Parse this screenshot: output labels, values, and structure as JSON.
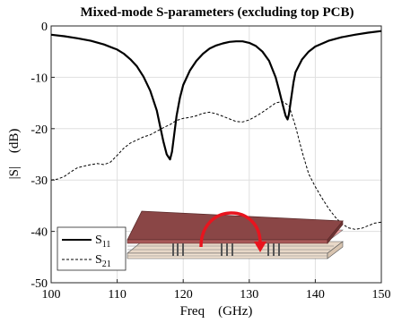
{
  "chart_data": {
    "type": "line",
    "title": "Mixed-mode S-parameters (excluding top PCB)",
    "xlabel": "Freq    (GHz)",
    "ylabel": "|S|    (dB)",
    "xlim": [
      100,
      150
    ],
    "ylim": [
      -50,
      0
    ],
    "xticks": [
      "100",
      "110",
      "120",
      "130",
      "140",
      "150"
    ],
    "yticks": [
      "0",
      "-10",
      "-20",
      "-30",
      "-40",
      "-50"
    ],
    "grid": true,
    "legend": {
      "placement": "bottom-left",
      "entries": [
        {
          "base": "S",
          "sub": "11",
          "style": "solid"
        },
        {
          "base": "S",
          "sub": "21",
          "style": "dashed"
        }
      ]
    },
    "series": [
      {
        "style": "solid",
        "x": [
          100,
          102,
          104,
          106,
          108,
          110,
          111,
          112,
          113,
          114,
          115,
          116,
          116.5,
          117,
          117.5,
          118,
          118.3,
          118.6,
          119,
          119.5,
          120,
          121,
          122,
          123,
          124,
          125,
          126,
          127,
          128,
          129,
          130,
          131,
          132,
          133,
          134,
          134.5,
          135,
          135.5,
          135.8,
          136,
          136.3,
          136.7,
          137,
          138,
          139,
          140,
          142,
          144,
          146,
          148,
          150
        ],
        "y": [
          -1.7,
          -2.0,
          -2.4,
          -2.9,
          -3.6,
          -4.6,
          -5.4,
          -6.5,
          -7.9,
          -9.9,
          -12.6,
          -16.5,
          -19.5,
          -22.5,
          -25.0,
          -26.0,
          -24.5,
          -21.5,
          -17.5,
          -14.0,
          -11.5,
          -8.7,
          -6.8,
          -5.4,
          -4.4,
          -3.8,
          -3.4,
          -3.1,
          -3.0,
          -3.0,
          -3.3,
          -3.9,
          -5.0,
          -6.8,
          -10.0,
          -12.4,
          -15.0,
          -17.5,
          -18.2,
          -17.2,
          -14.5,
          -11.0,
          -9.0,
          -6.5,
          -5.0,
          -4.0,
          -2.9,
          -2.2,
          -1.7,
          -1.3,
          -1.0
        ]
      },
      {
        "style": "dashed",
        "x": [
          100,
          101,
          102,
          103,
          104,
          105,
          106,
          107,
          108,
          109,
          110,
          111,
          112,
          113,
          114,
          115,
          116,
          117,
          118,
          119,
          120,
          121,
          122,
          123,
          124,
          125,
          126,
          127,
          128,
          129,
          130,
          131,
          132,
          133,
          134,
          135,
          136,
          137,
          138,
          139,
          140,
          141,
          142,
          143,
          144,
          145,
          146,
          147,
          148,
          149,
          150
        ],
        "y": [
          -30.0,
          -29.8,
          -29.3,
          -28.4,
          -27.6,
          -27.3,
          -27.0,
          -26.8,
          -27.0,
          -26.5,
          -25.2,
          -23.8,
          -22.8,
          -22.2,
          -21.6,
          -21.2,
          -20.5,
          -19.8,
          -19.2,
          -18.4,
          -18.0,
          -17.8,
          -17.5,
          -17.0,
          -16.8,
          -17.1,
          -17.6,
          -18.1,
          -18.6,
          -18.7,
          -18.3,
          -17.6,
          -16.8,
          -15.9,
          -15.0,
          -14.7,
          -15.5,
          -19.5,
          -24.5,
          -28.8,
          -31.3,
          -33.5,
          -35.5,
          -37.2,
          -38.5,
          -39.3,
          -39.6,
          -39.4,
          -38.9,
          -38.4,
          -38.2
        ]
      }
    ]
  }
}
